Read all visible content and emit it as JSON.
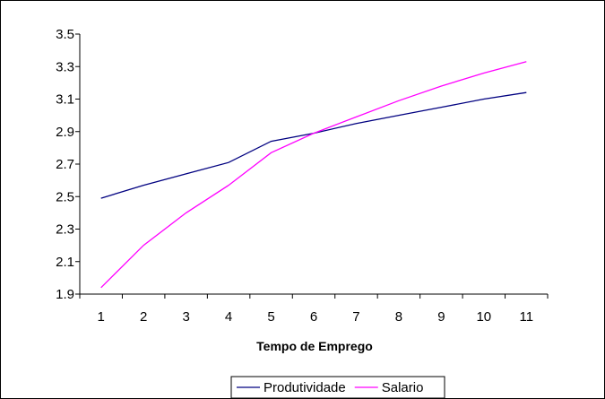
{
  "chart_data": {
    "type": "line",
    "title": "",
    "xlabel": "Tempo de Emprego",
    "ylabel": "",
    "categories": [
      "1",
      "2",
      "3",
      "4",
      "5",
      "6",
      "7",
      "8",
      "9",
      "10",
      "11"
    ],
    "ylim": [
      1.9,
      3.5
    ],
    "yticks": [
      "1.9",
      "2.1",
      "2.3",
      "2.5",
      "2.7",
      "2.9",
      "3.1",
      "3.3",
      "3.5"
    ],
    "grid": false,
    "legend_position": "bottom",
    "series": [
      {
        "name": "Produtividade",
        "color": "#000080",
        "values": [
          2.49,
          2.57,
          2.64,
          2.71,
          2.84,
          2.89,
          2.95,
          3.0,
          3.05,
          3.1,
          3.14
        ]
      },
      {
        "name": "Salario",
        "color": "#ff00ff",
        "values": [
          1.94,
          2.2,
          2.4,
          2.57,
          2.77,
          2.89,
          2.99,
          3.09,
          3.18,
          3.26,
          3.33
        ]
      }
    ]
  }
}
